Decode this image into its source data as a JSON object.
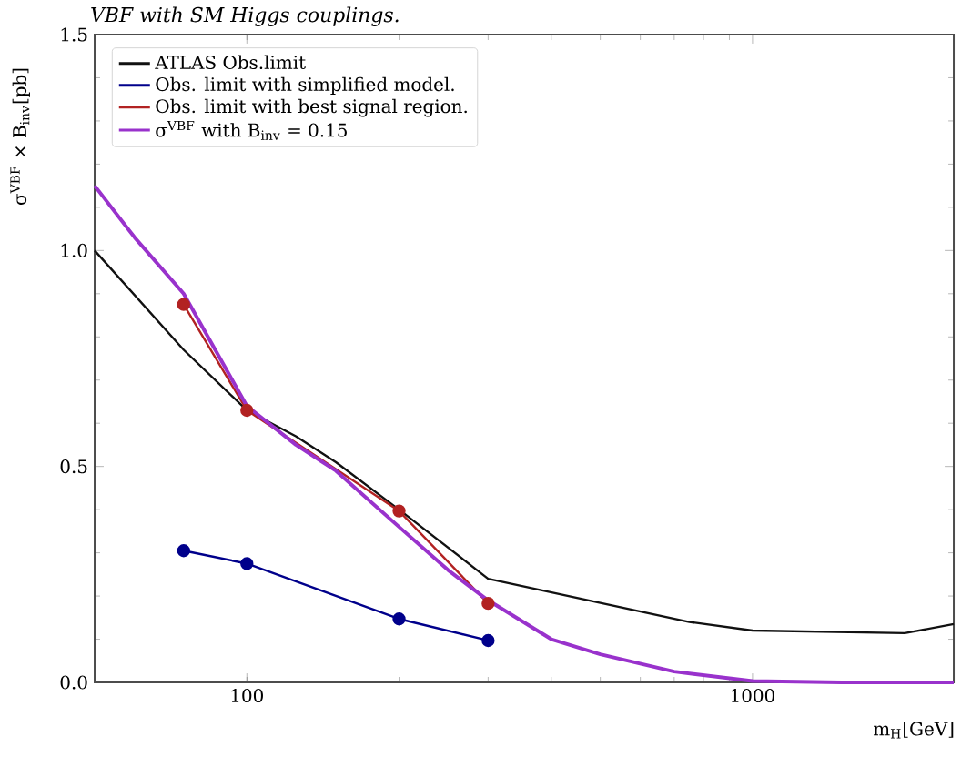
{
  "chart_data": {
    "type": "line",
    "title": "*VBF with SM Higgs couplings.*",
    "xlabel": "m$_{H}$[GeV]",
    "ylabel": "σ$^{VBF}$ × B$_{inv}$[pb]",
    "log": "x",
    "xlim": [
      50,
      2500
    ],
    "ylim": [
      0,
      1.5
    ],
    "xticks": [
      100,
      1000
    ],
    "yticks": [
      {
        "value": 0,
        "label": "0.0"
      },
      {
        "value": 0.5,
        "label": "0.5"
      },
      {
        "value": 1,
        "label": "1.0"
      },
      {
        "value": 1.5,
        "label": "1.5"
      }
    ],
    "legend": "top left",
    "grid": false,
    "series": [
      {
        "name": "ATLAS  Obs.limit",
        "color": "#111111",
        "marker": "none",
        "x": [
          50,
          75,
          100,
          125,
          150,
          200,
          300,
          750,
          1000,
          2000,
          2500
        ],
        "values": [
          1.0,
          0.77,
          0.63,
          0.57,
          0.51,
          0.4,
          0.24,
          0.14,
          0.12,
          0.114,
          0.135
        ]
      },
      {
        "name": "Obs. limit with simplified model.",
        "color": "#00008b",
        "marker": "circle",
        "x": [
          75,
          100,
          200,
          300
        ],
        "values": [
          0.305,
          0.275,
          0.147,
          0.097
        ]
      },
      {
        "name": "Obs. limit with best signal region.",
        "color": "#b22222",
        "marker": "circle",
        "x": [
          75,
          100,
          200,
          300
        ],
        "values": [
          0.875,
          0.63,
          0.397,
          0.183
        ]
      },
      {
        "name": "σ$^{VBF}$ with B$_{inv}$ = 0.15",
        "color": "#9932cc",
        "marker": "none",
        "x": [
          50,
          60,
          75,
          100,
          125,
          150,
          200,
          250,
          300,
          400,
          500,
          700,
          1000,
          1500,
          2500
        ],
        "values": [
          1.15,
          1.03,
          0.9,
          0.64,
          0.55,
          0.49,
          0.36,
          0.26,
          0.19,
          0.1,
          0.065,
          0.025,
          0.003,
          0,
          0
        ]
      }
    ]
  }
}
